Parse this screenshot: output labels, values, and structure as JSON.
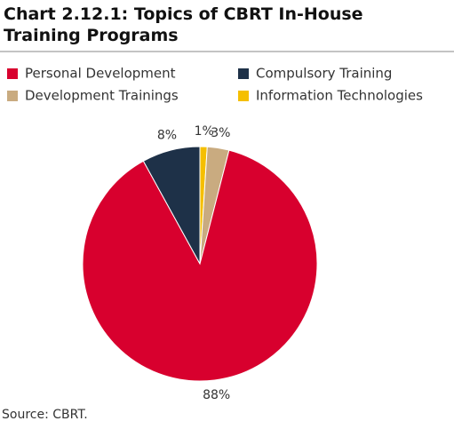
{
  "chart_data": {
    "type": "pie",
    "title": "Chart 2.12.1: Topics of CBRT In-House Training Programs",
    "categories": [
      "Information Technologies",
      "Development Trainings",
      "Personal Development",
      "Compulsory Training"
    ],
    "values": [
      1,
      3,
      88,
      8
    ],
    "value_labels": [
      "1%",
      "3%",
      "88%",
      "8%"
    ],
    "colors": [
      "#f5bf00",
      "#c9ab80",
      "#d8002e",
      "#1e3148"
    ],
    "legend": "top",
    "source": "Source: CBRT."
  }
}
